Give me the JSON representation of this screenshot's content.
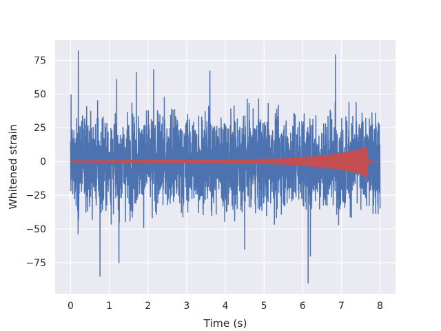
{
  "chart_data": {
    "type": "line",
    "title": "",
    "xlabel": "Time (s)",
    "ylabel": "Whitened strain",
    "xlim": [
      -0.4,
      8.4
    ],
    "ylim": [
      -98,
      90
    ],
    "xticks": [
      0,
      1,
      2,
      3,
      4,
      5,
      6,
      7,
      8
    ],
    "yticks": [
      -75,
      -50,
      -25,
      0,
      25,
      50,
      75
    ],
    "ytick_labels": [
      "−75",
      "−50",
      "−25",
      "0",
      "25",
      "50",
      "75"
    ],
    "grid": true,
    "legend": "none",
    "series": [
      {
        "role": "whitened strain data",
        "color": "#4c72b0",
        "x_range": [
          0,
          8
        ],
        "typical_envelope": [
          -45,
          45
        ],
        "peaks": [
          {
            "x": 0.2,
            "y": 82
          },
          {
            "x": 0.76,
            "y": -85
          },
          {
            "x": 1.25,
            "y": -75
          },
          {
            "x": 2.15,
            "y": 68
          },
          {
            "x": 3.6,
            "y": 67
          },
          {
            "x": 6.14,
            "y": -90
          },
          {
            "x": 6.2,
            "y": -70
          },
          {
            "x": 6.85,
            "y": 79
          },
          {
            "x": 4.5,
            "y": -65
          },
          {
            "x": 1.7,
            "y": 66
          }
        ]
      },
      {
        "role": "template waveform",
        "color": "#c44e52",
        "x_range": [
          0,
          8
        ],
        "merger_time": 7.65,
        "envelope": [
          {
            "x": 0,
            "y": 0.5
          },
          {
            "x": 4,
            "y": 1
          },
          {
            "x": 5.5,
            "y": 2
          },
          {
            "x": 6.5,
            "y": 4
          },
          {
            "x": 7.1,
            "y": 6.5
          },
          {
            "x": 7.4,
            "y": 8.5
          },
          {
            "x": 7.6,
            "y": 10
          },
          {
            "x": 7.65,
            "y": 11
          },
          {
            "x": 7.7,
            "y": 2
          },
          {
            "x": 8,
            "y": 0.5
          }
        ],
        "extreme_min": {
          "x": 7.66,
          "y": -13
        }
      }
    ]
  }
}
